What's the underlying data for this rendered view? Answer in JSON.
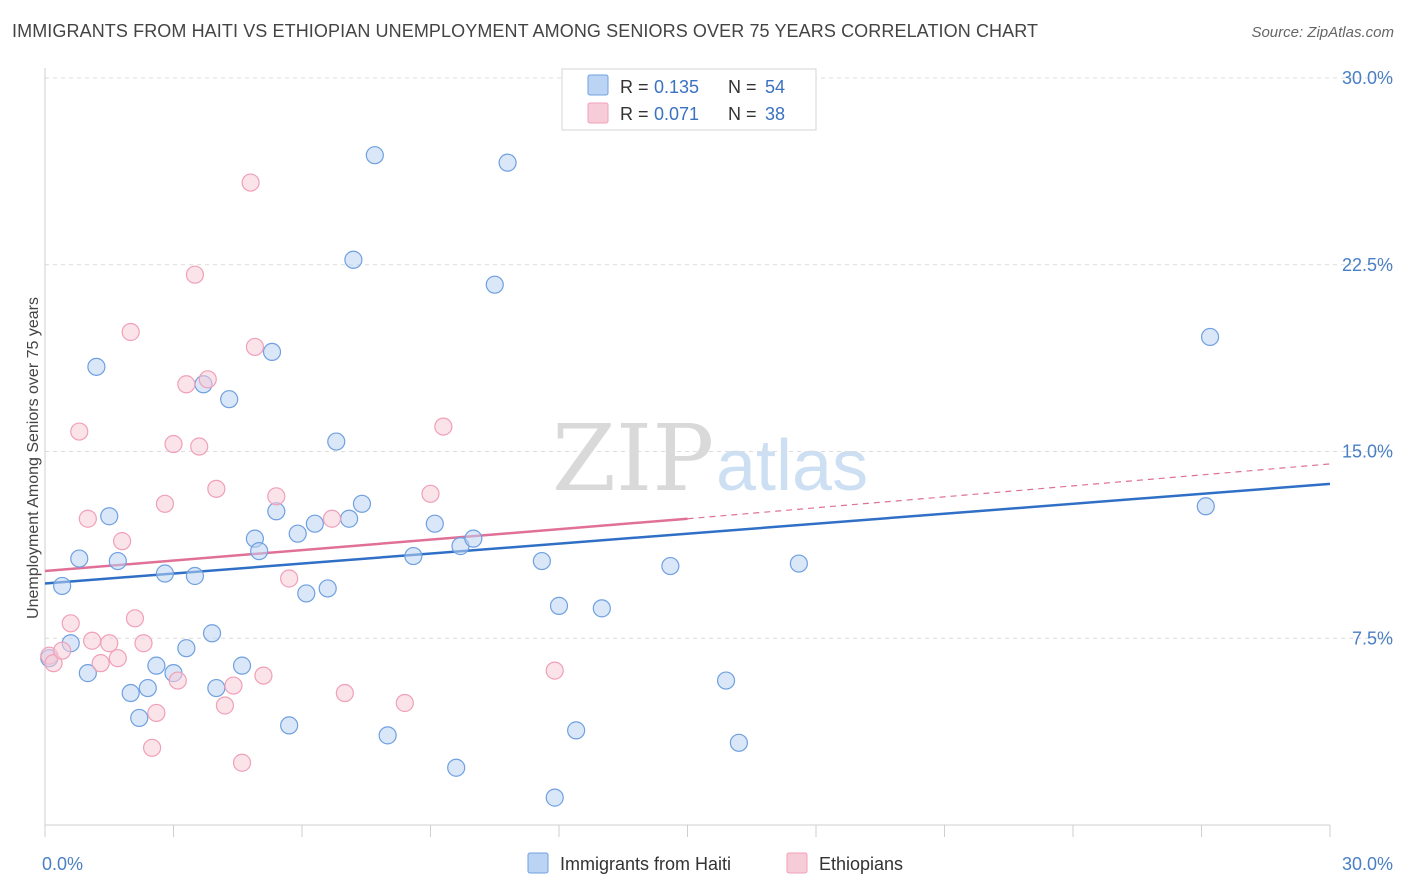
{
  "title": "IMMIGRANTS FROM HAITI VS ETHIOPIAN UNEMPLOYMENT AMONG SENIORS OVER 75 YEARS CORRELATION CHART",
  "source": "Source: ZipAtlas.com",
  "watermark": {
    "zip": "ZIP",
    "atlas": "atlas"
  },
  "chart_data": {
    "type": "scatter",
    "xlabel": "",
    "ylabel": "Unemployment Among Seniors over 75 years",
    "xlim": [
      0,
      30
    ],
    "ylim": [
      0,
      30
    ],
    "x_tick_labels": [
      {
        "value": 0,
        "label": "0.0%"
      },
      {
        "value": 30,
        "label": "30.0%"
      }
    ],
    "y_tick_labels": [
      {
        "value": 7.5,
        "label": "7.5%"
      },
      {
        "value": 15,
        "label": "15.0%"
      },
      {
        "value": 22.5,
        "label": "22.5%"
      },
      {
        "value": 30,
        "label": "30.0%"
      }
    ],
    "grid": "horizontal dashed",
    "legend_position": "top-center",
    "series": [
      {
        "name": "Immigrants from Haiti",
        "color": "#6fa0e0",
        "fill": "#bcd4f3",
        "line_color": "#2f6fc6",
        "R": "0.135",
        "N": "54",
        "r_label": "R =",
        "n_label": "N =",
        "trend": {
          "x": [
            0,
            30
          ],
          "y": [
            9.7,
            13.7
          ]
        },
        "points": [
          [
            0.1,
            6.7
          ],
          [
            0.4,
            9.6
          ],
          [
            0.6,
            7.3
          ],
          [
            0.8,
            10.7
          ],
          [
            1.0,
            6.1
          ],
          [
            1.2,
            18.4
          ],
          [
            1.5,
            12.4
          ],
          [
            1.7,
            10.6
          ],
          [
            2.0,
            5.3
          ],
          [
            2.2,
            4.3
          ],
          [
            2.4,
            5.5
          ],
          [
            2.6,
            6.4
          ],
          [
            2.8,
            10.1
          ],
          [
            3.0,
            6.1
          ],
          [
            3.3,
            7.1
          ],
          [
            3.5,
            10.0
          ],
          [
            3.7,
            17.7
          ],
          [
            3.9,
            7.7
          ],
          [
            4.0,
            5.5
          ],
          [
            4.3,
            17.1
          ],
          [
            4.6,
            6.4
          ],
          [
            4.9,
            11.5
          ],
          [
            5.0,
            11.0
          ],
          [
            5.3,
            19.0
          ],
          [
            5.4,
            12.6
          ],
          [
            5.7,
            4.0
          ],
          [
            5.9,
            11.7
          ],
          [
            6.1,
            9.3
          ],
          [
            6.3,
            12.1
          ],
          [
            6.6,
            9.5
          ],
          [
            6.8,
            15.4
          ],
          [
            7.1,
            12.3
          ],
          [
            7.2,
            22.7
          ],
          [
            7.4,
            12.9
          ],
          [
            7.7,
            26.9
          ],
          [
            8.0,
            3.6
          ],
          [
            8.6,
            10.8
          ],
          [
            9.1,
            12.1
          ],
          [
            9.6,
            2.3
          ],
          [
            9.7,
            11.2
          ],
          [
            10.0,
            11.5
          ],
          [
            10.5,
            21.7
          ],
          [
            10.8,
            26.6
          ],
          [
            11.6,
            10.6
          ],
          [
            11.9,
            1.1
          ],
          [
            12.0,
            8.8
          ],
          [
            12.4,
            3.8
          ],
          [
            13.0,
            8.7
          ],
          [
            14.6,
            10.4
          ],
          [
            15.9,
            5.8
          ],
          [
            16.2,
            3.3
          ],
          [
            17.6,
            10.5
          ],
          [
            27.1,
            12.8
          ],
          [
            27.2,
            19.6
          ]
        ]
      },
      {
        "name": "Ethiopians",
        "color": "#f0a0b8",
        "fill": "#f7ccd9",
        "line_color": "#e07098",
        "R": "0.071",
        "N": "38",
        "r_label": "R =",
        "n_label": "N =",
        "trend": {
          "x": [
            0,
            15
          ],
          "y": [
            10.2,
            12.3
          ]
        },
        "trend_extension": {
          "x": [
            15,
            30
          ],
          "y": [
            12.3,
            14.5
          ]
        },
        "points": [
          [
            0.1,
            6.8
          ],
          [
            0.2,
            6.5
          ],
          [
            0.4,
            7.0
          ],
          [
            0.6,
            8.1
          ],
          [
            0.8,
            15.8
          ],
          [
            1.0,
            12.3
          ],
          [
            1.1,
            7.4
          ],
          [
            1.3,
            6.5
          ],
          [
            1.5,
            7.3
          ],
          [
            1.7,
            6.7
          ],
          [
            1.8,
            11.4
          ],
          [
            2.0,
            19.8
          ],
          [
            2.1,
            8.3
          ],
          [
            2.3,
            7.3
          ],
          [
            2.5,
            3.1
          ],
          [
            2.6,
            4.5
          ],
          [
            2.8,
            12.9
          ],
          [
            3.0,
            15.3
          ],
          [
            3.1,
            5.8
          ],
          [
            3.3,
            17.7
          ],
          [
            3.5,
            22.1
          ],
          [
            3.6,
            15.2
          ],
          [
            3.8,
            17.9
          ],
          [
            4.0,
            13.5
          ],
          [
            4.2,
            4.8
          ],
          [
            4.4,
            5.6
          ],
          [
            4.6,
            2.5
          ],
          [
            4.8,
            25.8
          ],
          [
            4.9,
            19.2
          ],
          [
            5.1,
            6.0
          ],
          [
            5.4,
            13.2
          ],
          [
            5.7,
            9.9
          ],
          [
            6.7,
            12.3
          ],
          [
            7.0,
            5.3
          ],
          [
            8.4,
            4.9
          ],
          [
            9.0,
            13.3
          ],
          [
            9.3,
            16.0
          ],
          [
            11.9,
            6.2
          ]
        ]
      }
    ]
  }
}
